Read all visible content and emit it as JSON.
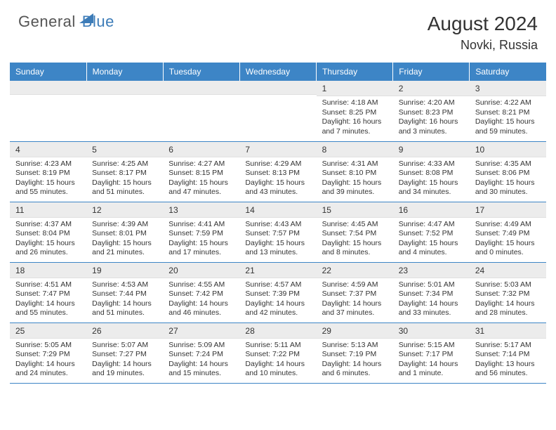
{
  "brand": {
    "part1": "General",
    "part2": "Blue",
    "triangleColor": "#3d7cb8"
  },
  "title": "August 2024",
  "location": "Novki, Russia",
  "colors": {
    "headerBg": "#3d85c6",
    "headerText": "#ffffff",
    "dayNumBg": "#ececec",
    "borderColor": "#3d85c6",
    "textColor": "#333333"
  },
  "typography": {
    "titleSize": 28,
    "locationSize": 18,
    "dayHeaderSize": 12,
    "dayNumSize": 12,
    "dayDataSize": 10.5
  },
  "dayHeaders": [
    "Sunday",
    "Monday",
    "Tuesday",
    "Wednesday",
    "Thursday",
    "Friday",
    "Saturday"
  ],
  "weeks": [
    [
      {
        "n": "",
        "sr": "",
        "ss": "",
        "dl": ""
      },
      {
        "n": "",
        "sr": "",
        "ss": "",
        "dl": ""
      },
      {
        "n": "",
        "sr": "",
        "ss": "",
        "dl": ""
      },
      {
        "n": "",
        "sr": "",
        "ss": "",
        "dl": ""
      },
      {
        "n": "1",
        "sr": "Sunrise: 4:18 AM",
        "ss": "Sunset: 8:25 PM",
        "dl": "Daylight: 16 hours and 7 minutes."
      },
      {
        "n": "2",
        "sr": "Sunrise: 4:20 AM",
        "ss": "Sunset: 8:23 PM",
        "dl": "Daylight: 16 hours and 3 minutes."
      },
      {
        "n": "3",
        "sr": "Sunrise: 4:22 AM",
        "ss": "Sunset: 8:21 PM",
        "dl": "Daylight: 15 hours and 59 minutes."
      }
    ],
    [
      {
        "n": "4",
        "sr": "Sunrise: 4:23 AM",
        "ss": "Sunset: 8:19 PM",
        "dl": "Daylight: 15 hours and 55 minutes."
      },
      {
        "n": "5",
        "sr": "Sunrise: 4:25 AM",
        "ss": "Sunset: 8:17 PM",
        "dl": "Daylight: 15 hours and 51 minutes."
      },
      {
        "n": "6",
        "sr": "Sunrise: 4:27 AM",
        "ss": "Sunset: 8:15 PM",
        "dl": "Daylight: 15 hours and 47 minutes."
      },
      {
        "n": "7",
        "sr": "Sunrise: 4:29 AM",
        "ss": "Sunset: 8:13 PM",
        "dl": "Daylight: 15 hours and 43 minutes."
      },
      {
        "n": "8",
        "sr": "Sunrise: 4:31 AM",
        "ss": "Sunset: 8:10 PM",
        "dl": "Daylight: 15 hours and 39 minutes."
      },
      {
        "n": "9",
        "sr": "Sunrise: 4:33 AM",
        "ss": "Sunset: 8:08 PM",
        "dl": "Daylight: 15 hours and 34 minutes."
      },
      {
        "n": "10",
        "sr": "Sunrise: 4:35 AM",
        "ss": "Sunset: 8:06 PM",
        "dl": "Daylight: 15 hours and 30 minutes."
      }
    ],
    [
      {
        "n": "11",
        "sr": "Sunrise: 4:37 AM",
        "ss": "Sunset: 8:04 PM",
        "dl": "Daylight: 15 hours and 26 minutes."
      },
      {
        "n": "12",
        "sr": "Sunrise: 4:39 AM",
        "ss": "Sunset: 8:01 PM",
        "dl": "Daylight: 15 hours and 21 minutes."
      },
      {
        "n": "13",
        "sr": "Sunrise: 4:41 AM",
        "ss": "Sunset: 7:59 PM",
        "dl": "Daylight: 15 hours and 17 minutes."
      },
      {
        "n": "14",
        "sr": "Sunrise: 4:43 AM",
        "ss": "Sunset: 7:57 PM",
        "dl": "Daylight: 15 hours and 13 minutes."
      },
      {
        "n": "15",
        "sr": "Sunrise: 4:45 AM",
        "ss": "Sunset: 7:54 PM",
        "dl": "Daylight: 15 hours and 8 minutes."
      },
      {
        "n": "16",
        "sr": "Sunrise: 4:47 AM",
        "ss": "Sunset: 7:52 PM",
        "dl": "Daylight: 15 hours and 4 minutes."
      },
      {
        "n": "17",
        "sr": "Sunrise: 4:49 AM",
        "ss": "Sunset: 7:49 PM",
        "dl": "Daylight: 15 hours and 0 minutes."
      }
    ],
    [
      {
        "n": "18",
        "sr": "Sunrise: 4:51 AM",
        "ss": "Sunset: 7:47 PM",
        "dl": "Daylight: 14 hours and 55 minutes."
      },
      {
        "n": "19",
        "sr": "Sunrise: 4:53 AM",
        "ss": "Sunset: 7:44 PM",
        "dl": "Daylight: 14 hours and 51 minutes."
      },
      {
        "n": "20",
        "sr": "Sunrise: 4:55 AM",
        "ss": "Sunset: 7:42 PM",
        "dl": "Daylight: 14 hours and 46 minutes."
      },
      {
        "n": "21",
        "sr": "Sunrise: 4:57 AM",
        "ss": "Sunset: 7:39 PM",
        "dl": "Daylight: 14 hours and 42 minutes."
      },
      {
        "n": "22",
        "sr": "Sunrise: 4:59 AM",
        "ss": "Sunset: 7:37 PM",
        "dl": "Daylight: 14 hours and 37 minutes."
      },
      {
        "n": "23",
        "sr": "Sunrise: 5:01 AM",
        "ss": "Sunset: 7:34 PM",
        "dl": "Daylight: 14 hours and 33 minutes."
      },
      {
        "n": "24",
        "sr": "Sunrise: 5:03 AM",
        "ss": "Sunset: 7:32 PM",
        "dl": "Daylight: 14 hours and 28 minutes."
      }
    ],
    [
      {
        "n": "25",
        "sr": "Sunrise: 5:05 AM",
        "ss": "Sunset: 7:29 PM",
        "dl": "Daylight: 14 hours and 24 minutes."
      },
      {
        "n": "26",
        "sr": "Sunrise: 5:07 AM",
        "ss": "Sunset: 7:27 PM",
        "dl": "Daylight: 14 hours and 19 minutes."
      },
      {
        "n": "27",
        "sr": "Sunrise: 5:09 AM",
        "ss": "Sunset: 7:24 PM",
        "dl": "Daylight: 14 hours and 15 minutes."
      },
      {
        "n": "28",
        "sr": "Sunrise: 5:11 AM",
        "ss": "Sunset: 7:22 PM",
        "dl": "Daylight: 14 hours and 10 minutes."
      },
      {
        "n": "29",
        "sr": "Sunrise: 5:13 AM",
        "ss": "Sunset: 7:19 PM",
        "dl": "Daylight: 14 hours and 6 minutes."
      },
      {
        "n": "30",
        "sr": "Sunrise: 5:15 AM",
        "ss": "Sunset: 7:17 PM",
        "dl": "Daylight: 14 hours and 1 minute."
      },
      {
        "n": "31",
        "sr": "Sunrise: 5:17 AM",
        "ss": "Sunset: 7:14 PM",
        "dl": "Daylight: 13 hours and 56 minutes."
      }
    ]
  ]
}
